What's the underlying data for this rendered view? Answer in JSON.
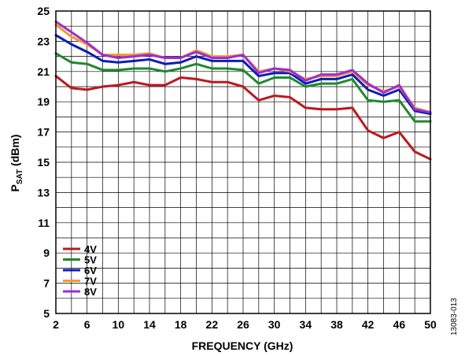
{
  "chart_data": {
    "type": "line",
    "xlabel": "FREQUENCY (GHz)",
    "ylabel_main": "P",
    "ylabel_sub": "SAT",
    "ylabel_unit": " (dBm)",
    "xlim": [
      2,
      50
    ],
    "ylim": [
      5,
      25
    ],
    "x_ticks": [
      2,
      6,
      10,
      14,
      18,
      22,
      26,
      30,
      34,
      38,
      42,
      46,
      50
    ],
    "y_ticks": [
      5,
      7,
      9,
      11,
      13,
      15,
      17,
      19,
      21,
      23,
      25
    ],
    "grid": true,
    "legend_position": "bottom-left",
    "x": [
      2,
      4,
      6,
      8,
      10,
      12,
      14,
      16,
      18,
      20,
      22,
      24,
      26,
      28,
      30,
      32,
      34,
      36,
      38,
      40,
      42,
      44,
      46,
      48,
      50
    ],
    "series": [
      {
        "name": "4V",
        "color": "#c0161c",
        "values": [
          20.7,
          19.9,
          19.8,
          20.0,
          20.1,
          20.3,
          20.1,
          20.1,
          20.6,
          20.5,
          20.3,
          20.3,
          20.0,
          19.1,
          19.4,
          19.3,
          18.6,
          18.5,
          18.5,
          18.6,
          17.1,
          16.6,
          17.0,
          15.7,
          15.2
        ]
      },
      {
        "name": "5V",
        "color": "#1e8a2e",
        "values": [
          22.2,
          21.6,
          21.5,
          21.1,
          21.1,
          21.2,
          21.2,
          21.0,
          21.2,
          21.5,
          21.2,
          21.2,
          21.1,
          20.2,
          20.6,
          20.6,
          20.0,
          20.2,
          20.2,
          20.5,
          19.1,
          19.0,
          19.1,
          17.7,
          17.7
        ]
      },
      {
        "name": "6V",
        "color": "#0a1fb5",
        "values": [
          23.4,
          22.8,
          22.3,
          21.7,
          21.6,
          21.7,
          21.8,
          21.5,
          21.6,
          22.0,
          21.7,
          21.7,
          21.7,
          20.7,
          20.9,
          20.9,
          20.2,
          20.5,
          20.5,
          20.8,
          19.8,
          19.4,
          19.8,
          18.4,
          18.2
        ]
      },
      {
        "name": "7V",
        "color": "#f39a2c",
        "values": [
          24.1,
          23.3,
          22.8,
          22.1,
          22.1,
          22.1,
          22.2,
          21.9,
          21.9,
          22.4,
          22.0,
          22.0,
          22.1,
          21.0,
          21.2,
          21.0,
          20.5,
          20.7,
          20.7,
          21.0,
          20.1,
          19.7,
          20.0,
          18.6,
          18.3
        ]
      },
      {
        "name": "8V",
        "color": "#a12bd6",
        "values": [
          24.3,
          23.6,
          22.9,
          22.1,
          21.9,
          22.0,
          22.1,
          21.9,
          21.9,
          22.3,
          21.9,
          21.9,
          22.1,
          20.9,
          21.2,
          21.1,
          20.4,
          20.8,
          20.8,
          21.1,
          20.2,
          19.6,
          20.1,
          18.5,
          18.3
        ]
      }
    ]
  },
  "figure_id": "13083-013"
}
